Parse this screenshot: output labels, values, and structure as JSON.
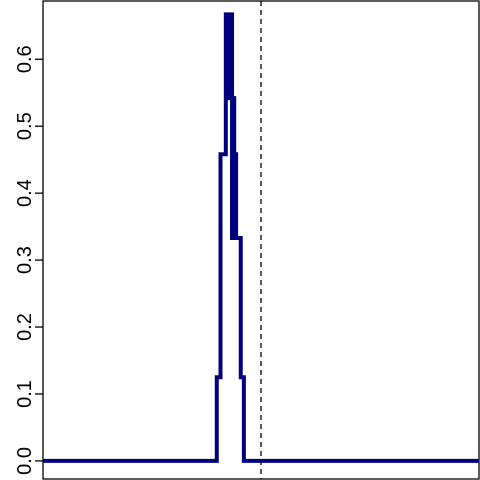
{
  "chart_data": {
    "type": "line",
    "title": "",
    "xlabel": "",
    "ylabel": "",
    "xlim": [
      -0.2,
      1.2
    ],
    "ylim": [
      -0.027,
      0.687
    ],
    "yticks": [
      0.0,
      0.1,
      0.2,
      0.3,
      0.4,
      0.5,
      0.6
    ],
    "ytick_labels": [
      "0.0",
      "0.1",
      "0.2",
      "0.3",
      "0.4",
      "0.5",
      "0.6"
    ],
    "grid": false,
    "legend": "none",
    "reference_line": {
      "x": 0.5,
      "style": "dashed",
      "color": "#000000"
    },
    "series": [
      {
        "color": "#00007f",
        "step": true,
        "x": [
          -0.2,
          0.358,
          0.37,
          0.387,
          0.398,
          0.402,
          0.407,
          0.411,
          0.414,
          0.417,
          0.42,
          0.423,
          0.435,
          0.445,
          0.453,
          1.2
        ],
        "y": [
          0.0,
          0.125,
          0.458,
          0.667,
          0.542,
          0.667,
          0.333,
          0.542,
          0.333,
          0.458,
          0.333,
          0.333,
          0.125,
          0.0,
          0.0,
          0.0
        ]
      }
    ]
  }
}
